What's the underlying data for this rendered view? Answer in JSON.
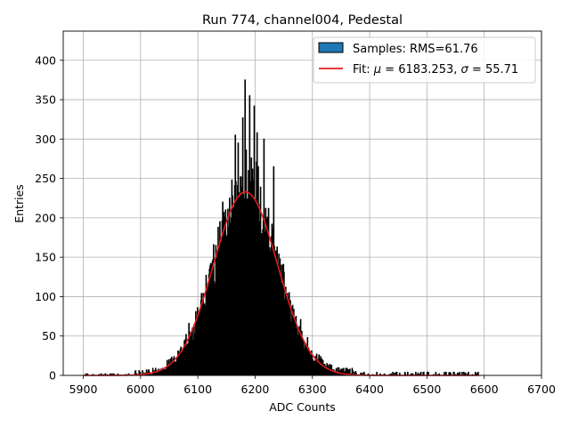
{
  "chart_data": {
    "type": "histogram",
    "title": "Run 774, channel004, Pedestal",
    "xlabel": "ADC Counts",
    "ylabel": "Entries",
    "xlim": [
      5865,
      6700
    ],
    "ylim": [
      0,
      437
    ],
    "xticks": [
      5900,
      6000,
      6100,
      6200,
      6300,
      6400,
      6500,
      6600,
      6700
    ],
    "yticks": [
      0,
      50,
      100,
      150,
      200,
      250,
      300,
      350,
      400
    ],
    "grid": true,
    "legend_position": "top-right",
    "histogram": {
      "name": "Samples: RMS=61.76",
      "rms": 61.76,
      "bin_width": 1,
      "range": [
        5900,
        6590
      ],
      "color": "#1f77b4",
      "edge_color": "#000000",
      "annotated_peaks": [
        {
          "x": 6165,
          "y": 305
        },
        {
          "x": 6170,
          "y": 295
        },
        {
          "x": 6178,
          "y": 327
        },
        {
          "x": 6182,
          "y": 375
        },
        {
          "x": 6190,
          "y": 355
        },
        {
          "x": 6198,
          "y": 342
        },
        {
          "x": 6203,
          "y": 308
        },
        {
          "x": 6215,
          "y": 300
        },
        {
          "x": 6232,
          "y": 265
        }
      ]
    },
    "fit": {
      "name_prefix": "Fit: ",
      "mu_symbol": "μ",
      "mu": 6183.253,
      "sigma_symbol": "σ",
      "sigma": 55.71,
      "amplitude": 233,
      "x_range": [
        5900,
        6590
      ],
      "color": "#e31a1c"
    }
  }
}
